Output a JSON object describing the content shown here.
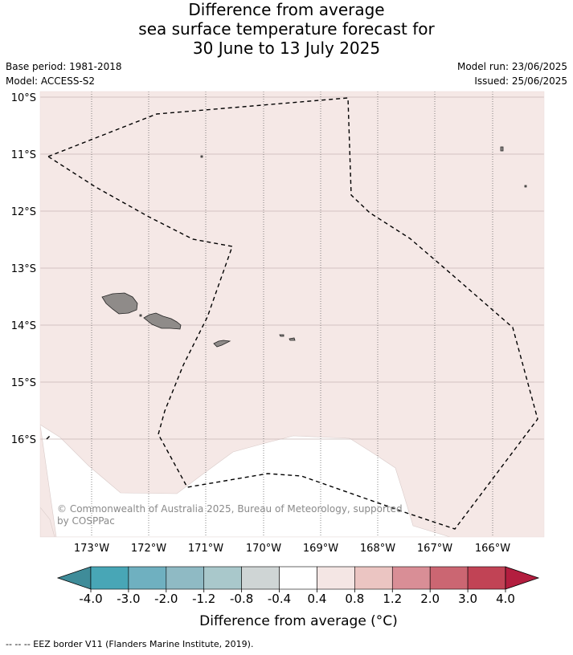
{
  "title": {
    "line1": "Difference from average",
    "line2": "sea surface temperature forecast for",
    "line3": "30 June to 13 July 2025"
  },
  "meta": {
    "base_period": "Base period: 1981-2018",
    "model": "Model: ACCESS-S2",
    "model_run": "Model run: 23/06/2025",
    "issued": "Issued: 25/06/2025"
  },
  "map": {
    "background_color": "#f5e8e6",
    "no_data_color": "#ffffff",
    "land_color": "#8f8b89",
    "lat_labels": [
      "10°S",
      "11°S",
      "12°S",
      "13°S",
      "14°S",
      "15°S",
      "16°S"
    ],
    "lon_labels": [
      "173°W",
      "172°W",
      "171°W",
      "170°W",
      "169°W",
      "168°W",
      "167°W",
      "166°W"
    ],
    "copyright_line1": "© Commonwealth of Australia 2025, Bureau of Meteorology, supported",
    "copyright_line2": "by COSPPac"
  },
  "colorbar": {
    "colors": [
      "#3f8c99",
      "#48a6b6",
      "#6fb0c0",
      "#8fbac4",
      "#a9c8cb",
      "#cfd5d5",
      "#ffffff",
      "#f4e6e4",
      "#ebc5c2",
      "#d98e96",
      "#cb6672",
      "#c14355",
      "#b31e3f"
    ],
    "labels": [
      "-4.0",
      "-3.0",
      "-2.0",
      "-1.2",
      "-0.8",
      "-0.4",
      "0.4",
      "0.8",
      "1.2",
      "2.0",
      "3.0",
      "4.0"
    ],
    "title": "Difference from average (°C)"
  },
  "footer": "--  --  -- EEZ border V11 (Flanders Marine Institute, 2019)."
}
